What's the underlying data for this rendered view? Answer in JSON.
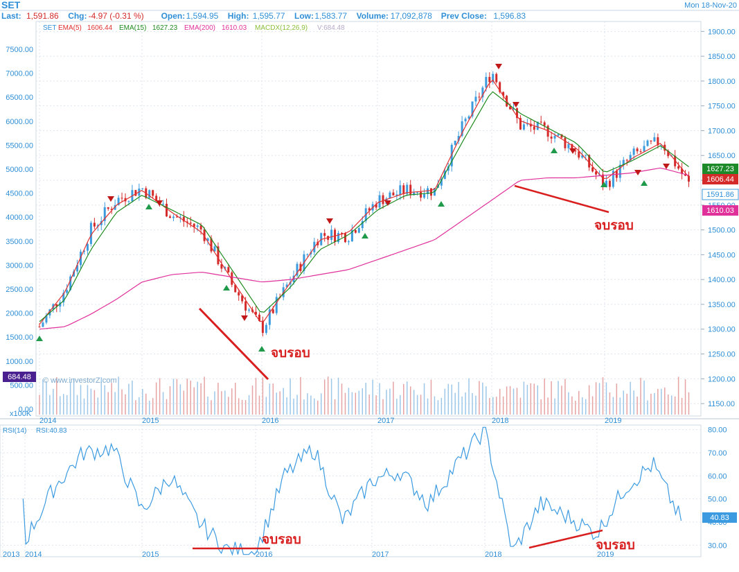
{
  "header": {
    "symbol": "SET",
    "date": "Mon 18-Nov-20",
    "quote": [
      {
        "label": "Last:",
        "value": "1,591.86"
      },
      {
        "label": "Chg:",
        "value": "-4.97 (-0.31 %)"
      },
      {
        "label": "Open:",
        "value": "1,594.95"
      },
      {
        "label": "High:",
        "value": "1,595.77"
      },
      {
        "label": "Low:",
        "value": "1,583.77"
      },
      {
        "label": "Volume:",
        "value": "17,092,878"
      },
      {
        "label": "Prev Close:",
        "value": "1,596.83"
      }
    ]
  },
  "legend": {
    "symbol": "SET",
    "ema5_label": "EMA(5)",
    "ema5_value": "1606.44",
    "ema15_label": "EMA(15)",
    "ema15_value": "1627.23",
    "ema200_label": "EMA(200)",
    "ema200_value": "1610.03",
    "macdx_label": "MACDX(12,26,9)",
    "volume_label": "V:684.48"
  },
  "badges": {
    "volume_badge": "684.48",
    "ema15_badge": "1627.23",
    "ema5_badge": "1606.44",
    "last_badge": "1591.86",
    "ema200_badge": "1610.03",
    "rsi_badge": "40.83"
  },
  "watermark": "© www.investorZ.com",
  "volume_unit": "x100K",
  "rsi_legend": {
    "label": "RSI(14)",
    "value": "RSI:40.83"
  },
  "annotations": {
    "note_2016": "จบรอบ",
    "note_2019": "จบรอบ",
    "rsi_note_2016": "จบรอบ",
    "rsi_note_2019": "จบรอบ"
  },
  "colors": {
    "up": "#3c9bdc",
    "down": "#d42a2a",
    "ema5": "#e03030",
    "ema15": "#1f8a1f",
    "ema200": "#e0309a",
    "rsi": "#3c9be0",
    "header_value": "#d42a2a",
    "axis_text": "#2f8fd6",
    "trend": "#d81e1e"
  },
  "chart_data": [
    {
      "type": "line",
      "title": "SET",
      "x_ticks": [
        "2014",
        "2015",
        "2016",
        "2017",
        "2018",
        "2019"
      ],
      "x": [
        "2014-01",
        "2014-04",
        "2014-07",
        "2014-10",
        "2015-01",
        "2015-04",
        "2015-07",
        "2015-10",
        "2016-01",
        "2016-04",
        "2016-07",
        "2016-10",
        "2017-01",
        "2017-04",
        "2017-07",
        "2017-10",
        "2018-01",
        "2018-04",
        "2018-07",
        "2018-10",
        "2019-01",
        "2019-04",
        "2019-07",
        "2019-10"
      ],
      "left_axis": {
        "ticks": [
          "7500.00",
          "7000.00",
          "6500.00",
          "6000.00",
          "5500.00",
          "5000.00",
          "4500.00",
          "4000.00",
          "3500.00",
          "3000.00",
          "2500.00",
          "2000.00",
          "1500.00",
          "1000.00",
          "500.00",
          "0.00"
        ]
      },
      "right_axis": {
        "ticks": [
          "1900.00",
          "1850.00",
          "1800.00",
          "1750.00",
          "1700.00",
          "1650.00",
          "1600.00",
          "1550.00",
          "1500.00",
          "1450.00",
          "1400.00",
          "1350.00",
          "1300.00",
          "1250.00",
          "1200.00",
          "1150.00"
        ],
        "ylim": [
          1125,
          1920
        ]
      },
      "series": [
        {
          "name": "SET",
          "values": [
            1305,
            1380,
            1500,
            1560,
            1585,
            1530,
            1500,
            1390,
            1300,
            1400,
            1490,
            1490,
            1560,
            1580,
            1580,
            1710,
            1820,
            1710,
            1700,
            1660,
            1590,
            1650,
            1680,
            1592
          ]
        },
        {
          "name": "EMA(5)",
          "values": [
            1310,
            1375,
            1490,
            1550,
            1580,
            1535,
            1495,
            1400,
            1310,
            1395,
            1480,
            1495,
            1555,
            1575,
            1580,
            1700,
            1805,
            1720,
            1700,
            1665,
            1600,
            1645,
            1675,
            1606.44
          ]
        },
        {
          "name": "EMA(15)",
          "values": [
            1315,
            1360,
            1460,
            1535,
            1570,
            1540,
            1510,
            1420,
            1330,
            1385,
            1460,
            1490,
            1540,
            1570,
            1575,
            1680,
            1780,
            1735,
            1705,
            1675,
            1615,
            1640,
            1670,
            1627.23
          ]
        },
        {
          "name": "EMA(200)",
          "values": [
            1300,
            1305,
            1330,
            1360,
            1395,
            1410,
            1415,
            1405,
            1395,
            1400,
            1410,
            1420,
            1440,
            1460,
            1480,
            1520,
            1560,
            1600,
            1605,
            1605,
            1610,
            1615,
            1625,
            1610.03
          ]
        }
      ],
      "volume": {
        "name": "Volume",
        "unit": "x100K",
        "last": 684.48
      }
    },
    {
      "type": "line",
      "title": "RSI(14)",
      "x_ticks": [
        "2013",
        "2014",
        "2015",
        "2016",
        "2017",
        "2018",
        "2019"
      ],
      "x": [
        "2013-12",
        "2014-01",
        "2014-04",
        "2014-07",
        "2014-10",
        "2015-01",
        "2015-04",
        "2015-07",
        "2015-10",
        "2016-01",
        "2016-04",
        "2016-07",
        "2016-10",
        "2017-01",
        "2017-04",
        "2017-07",
        "2017-10",
        "2018-01",
        "2018-04",
        "2018-07",
        "2018-10",
        "2019-01",
        "2019-04",
        "2019-07",
        "2019-10"
      ],
      "y_ticks": [
        "80.00",
        "70.00",
        "60.00",
        "50.00",
        "40.00",
        "30.00"
      ],
      "ylim": [
        25,
        82
      ],
      "series": [
        {
          "name": "RSI(14)",
          "values": [
            50,
            32,
            55,
            70,
            72,
            45,
            60,
            40,
            28,
            27,
            60,
            72,
            40,
            58,
            62,
            48,
            65,
            80,
            27,
            48,
            42,
            35,
            55,
            65,
            40.83
          ]
        }
      ]
    }
  ]
}
